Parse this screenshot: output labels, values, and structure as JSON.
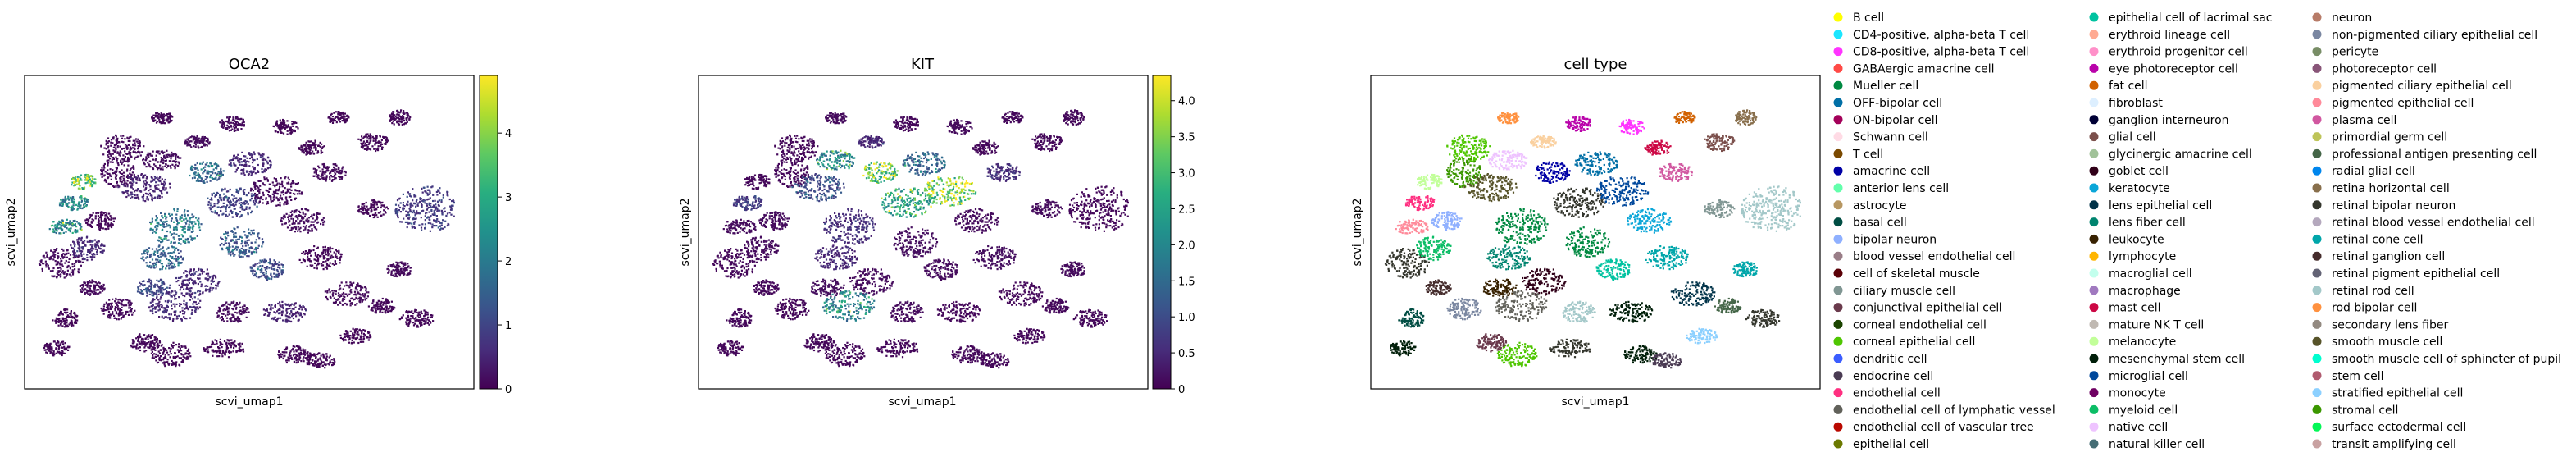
{
  "panels": [
    {
      "title": "OCA2",
      "xlabel": "scvi_umap1",
      "ylabel": "scvi_umap2",
      "colorbar": {
        "colormap": "viridis",
        "vmin": 0,
        "vmax": 4.9,
        "ticks": [
          "0",
          "1",
          "2",
          "3",
          "4"
        ],
        "tick_values": [
          0,
          1,
          2,
          3,
          4
        ]
      }
    },
    {
      "title": "KIT",
      "xlabel": "scvi_umap1",
      "ylabel": "scvi_umap2",
      "colorbar": {
        "colormap": "viridis",
        "vmin": 0,
        "vmax": 4.35,
        "ticks": [
          "0",
          "0.5",
          "1.0",
          "1.5",
          "2.0",
          "2.5",
          "3.0",
          "3.5",
          "4.0"
        ],
        "tick_values": [
          0,
          0.5,
          1,
          1.5,
          2,
          2.5,
          3,
          3.5,
          4
        ]
      }
    },
    {
      "title": "cell type",
      "xlabel": "scvi_umap1",
      "ylabel": "scvi_umap2"
    }
  ],
  "chart_data": {
    "type": "scatter",
    "embedding": "scvi_umap",
    "legend_placement": "right, outside, 3 columns",
    "categories": [
      {
        "name": "B cell",
        "color": "#ffff00"
      },
      {
        "name": "CD4-positive, alpha-beta T cell",
        "color": "#1ce6ff"
      },
      {
        "name": "CD8-positive, alpha-beta T cell",
        "color": "#ff34ff"
      },
      {
        "name": "GABAergic amacrine cell",
        "color": "#ff4a46"
      },
      {
        "name": "Mueller cell",
        "color": "#008941"
      },
      {
        "name": "OFF-bipolar cell",
        "color": "#006fa6"
      },
      {
        "name": "ON-bipolar cell",
        "color": "#a30059"
      },
      {
        "name": "Schwann cell",
        "color": "#ffdbe5"
      },
      {
        "name": "T cell",
        "color": "#7a4900"
      },
      {
        "name": "amacrine cell",
        "color": "#0000a6"
      },
      {
        "name": "anterior lens cell",
        "color": "#63ffac"
      },
      {
        "name": "astrocyte",
        "color": "#b79762"
      },
      {
        "name": "basal cell",
        "color": "#004d43"
      },
      {
        "name": "bipolar neuron",
        "color": "#8fb0ff"
      },
      {
        "name": "blood vessel endothelial cell",
        "color": "#997d87"
      },
      {
        "name": "cell of skeletal muscle",
        "color": "#5a0007"
      },
      {
        "name": "ciliary muscle cell",
        "color": "#809693"
      },
      {
        "name": "conjunctival epithelial cell",
        "color": "#6a3a4c"
      },
      {
        "name": "corneal endothelial cell",
        "color": "#1b4400"
      },
      {
        "name": "corneal epithelial cell",
        "color": "#4fc601"
      },
      {
        "name": "dendritic cell",
        "color": "#3b5dff"
      },
      {
        "name": "endocrine cell",
        "color": "#4a3b53"
      },
      {
        "name": "endothelial cell",
        "color": "#ff2f80"
      },
      {
        "name": "endothelial cell of lymphatic vessel",
        "color": "#61615a"
      },
      {
        "name": "endothelial cell of vascular tree",
        "color": "#ba0900"
      },
      {
        "name": "epithelial cell",
        "color": "#6b7900"
      },
      {
        "name": "epithelial cell of lacrimal sac",
        "color": "#00c2a0"
      },
      {
        "name": "erythroid lineage cell",
        "color": "#ffaa92"
      },
      {
        "name": "erythroid progenitor cell",
        "color": "#ff90c9"
      },
      {
        "name": "eye photoreceptor cell",
        "color": "#b903aa"
      },
      {
        "name": "fat cell",
        "color": "#d16100"
      },
      {
        "name": "fibroblast",
        "color": "#ddefff"
      },
      {
        "name": "ganglion interneuron",
        "color": "#000035"
      },
      {
        "name": "glial cell",
        "color": "#7b4f4b"
      },
      {
        "name": "glycinergic amacrine cell",
        "color": "#a1c299"
      },
      {
        "name": "goblet cell",
        "color": "#300018"
      },
      {
        "name": "keratocyte",
        "color": "#0aa6d8"
      },
      {
        "name": "lens epithelial cell",
        "color": "#013349"
      },
      {
        "name": "lens fiber cell",
        "color": "#00846f"
      },
      {
        "name": "leukocyte",
        "color": "#372101"
      },
      {
        "name": "lymphocyte",
        "color": "#ffb500"
      },
      {
        "name": "macroglial cell",
        "color": "#c2ffed"
      },
      {
        "name": "macrophage",
        "color": "#a079bf"
      },
      {
        "name": "mast cell",
        "color": "#cc0744"
      },
      {
        "name": "mature NK T cell",
        "color": "#c0b9b2"
      },
      {
        "name": "melanocyte",
        "color": "#c2ff99"
      },
      {
        "name": "mesenchymal stem cell",
        "color": "#001e09"
      },
      {
        "name": "microglial cell",
        "color": "#00489c"
      },
      {
        "name": "monocyte",
        "color": "#6f0062"
      },
      {
        "name": "myeloid cell",
        "color": "#0cbd66"
      },
      {
        "name": "native cell",
        "color": "#eec3ff"
      },
      {
        "name": "natural killer cell",
        "color": "#456d75"
      },
      {
        "name": "neuron",
        "color": "#b77b68"
      },
      {
        "name": "non-pigmented ciliary epithelial cell",
        "color": "#7a87a1"
      },
      {
        "name": "pericyte",
        "color": "#788d66"
      },
      {
        "name": "photoreceptor cell",
        "color": "#885578"
      },
      {
        "name": "pigmented ciliary epithelial cell",
        "color": "#fad09f"
      },
      {
        "name": "pigmented epithelial cell",
        "color": "#ff8a9a"
      },
      {
        "name": "plasma cell",
        "color": "#d157a0"
      },
      {
        "name": "primordial germ cell",
        "color": "#bec459"
      },
      {
        "name": "professional antigen presenting cell",
        "color": "#456648"
      },
      {
        "name": "radial glial cell",
        "color": "#0086ed"
      },
      {
        "name": "retina horizontal cell",
        "color": "#886f4c"
      },
      {
        "name": "retinal bipolar neuron",
        "color": "#34362d"
      },
      {
        "name": "retinal blood vessel endothelial cell",
        "color": "#b4a8bd"
      },
      {
        "name": "retinal cone cell",
        "color": "#00a6aa"
      },
      {
        "name": "retinal ganglion cell",
        "color": "#452c2c"
      },
      {
        "name": "retinal pigment epithelial cell",
        "color": "#636375"
      },
      {
        "name": "retinal rod cell",
        "color": "#a3c8c9"
      },
      {
        "name": "rod bipolar cell",
        "color": "#ff913f"
      },
      {
        "name": "secondary lens fiber",
        "color": "#938a81"
      },
      {
        "name": "smooth muscle cell",
        "color": "#575329"
      },
      {
        "name": "smooth muscle cell of sphincter of pupil",
        "color": "#00fecf"
      },
      {
        "name": "stem cell",
        "color": "#b05b6f"
      },
      {
        "name": "stratified epithelial cell",
        "color": "#8cd0ff"
      },
      {
        "name": "stromal cell",
        "color": "#3b9700"
      },
      {
        "name": "surface ectodermal cell",
        "color": "#04f757"
      },
      {
        "name": "transit amplifying cell",
        "color": "#c8a1a1"
      }
    ],
    "clusters": [
      {
        "x": 0.07,
        "y": 0.6,
        "rx": 0.05,
        "ry": 0.05,
        "cat": 63,
        "oca2": 0.4,
        "kit": 0.2
      },
      {
        "x": 0.13,
        "y": 0.55,
        "rx": 0.04,
        "ry": 0.04,
        "cat": 49,
        "oca2": 0.6,
        "kit": 0.3
      },
      {
        "x": 0.08,
        "y": 0.48,
        "rx": 0.04,
        "ry": 0.025,
        "cat": 57,
        "oca2": 2.6,
        "kit": 0.3
      },
      {
        "x": 0.1,
        "y": 0.4,
        "rx": 0.035,
        "ry": 0.025,
        "cat": 22,
        "oca2": 2.4,
        "kit": 0.8
      },
      {
        "x": 0.16,
        "y": 0.46,
        "rx": 0.035,
        "ry": 0.03,
        "cat": 13,
        "oca2": 0.2,
        "kit": 0.3
      },
      {
        "x": 0.12,
        "y": 0.33,
        "rx": 0.03,
        "ry": 0.025,
        "cat": 45,
        "oca2": 4.3,
        "kit": 0.2
      },
      {
        "x": 0.2,
        "y": 0.3,
        "rx": 0.04,
        "ry": 0.05,
        "cat": 75,
        "oca2": 0.3,
        "kit": 0.2
      },
      {
        "x": 0.21,
        "y": 0.22,
        "rx": 0.05,
        "ry": 0.045,
        "cat": 19,
        "oca2": 0.3,
        "kit": 0.2
      },
      {
        "x": 0.26,
        "y": 0.35,
        "rx": 0.06,
        "ry": 0.045,
        "cat": 71,
        "oca2": 0.5,
        "kit": 1.1
      },
      {
        "x": 0.3,
        "y": 0.26,
        "rx": 0.045,
        "ry": 0.035,
        "cat": 50,
        "oca2": 0.4,
        "kit": 2.3
      },
      {
        "x": 0.33,
        "y": 0.48,
        "rx": 0.06,
        "ry": 0.06,
        "cat": 4,
        "oca2": 2.1,
        "kit": 0.6
      },
      {
        "x": 0.3,
        "y": 0.58,
        "rx": 0.05,
        "ry": 0.04,
        "cat": 38,
        "oca2": 1.7,
        "kit": 0.5
      },
      {
        "x": 0.28,
        "y": 0.68,
        "rx": 0.04,
        "ry": 0.03,
        "cat": 39,
        "oca2": 1.2,
        "kit": 0.4
      },
      {
        "x": 0.38,
        "y": 0.66,
        "rx": 0.05,
        "ry": 0.045,
        "cat": 35,
        "oca2": 0.6,
        "kit": 0.3
      },
      {
        "x": 0.2,
        "y": 0.75,
        "rx": 0.04,
        "ry": 0.035,
        "cat": 53,
        "oca2": 0.3,
        "kit": 0.2
      },
      {
        "x": 0.4,
        "y": 0.3,
        "rx": 0.04,
        "ry": 0.035,
        "cat": 9,
        "oca2": 1.8,
        "kit": 3.6
      },
      {
        "x": 0.46,
        "y": 0.4,
        "rx": 0.06,
        "ry": 0.05,
        "cat": 63,
        "oca2": 1.0,
        "kit": 2.8
      },
      {
        "x": 0.5,
        "y": 0.27,
        "rx": 0.05,
        "ry": 0.04,
        "cat": 5,
        "oca2": 0.6,
        "kit": 1.6
      },
      {
        "x": 0.56,
        "y": 0.36,
        "rx": 0.06,
        "ry": 0.05,
        "cat": 47,
        "oca2": 0.3,
        "kit": 4.0
      },
      {
        "x": 0.48,
        "y": 0.53,
        "rx": 0.05,
        "ry": 0.05,
        "cat": 4,
        "oca2": 1.5,
        "kit": 0.4
      },
      {
        "x": 0.54,
        "y": 0.62,
        "rx": 0.04,
        "ry": 0.035,
        "cat": 26,
        "oca2": 1.2,
        "kit": 0.3
      },
      {
        "x": 0.62,
        "y": 0.46,
        "rx": 0.05,
        "ry": 0.04,
        "cat": 36,
        "oca2": 0.4,
        "kit": 0.3
      },
      {
        "x": 0.68,
        "y": 0.3,
        "rx": 0.04,
        "ry": 0.03,
        "cat": 58,
        "oca2": 0.3,
        "kit": 0.6
      },
      {
        "x": 0.66,
        "y": 0.58,
        "rx": 0.05,
        "ry": 0.04,
        "cat": 65,
        "oca2": 0.2,
        "kit": 0.4
      },
      {
        "x": 0.58,
        "y": 0.76,
        "rx": 0.05,
        "ry": 0.035,
        "cat": 46,
        "oca2": 0.5,
        "kit": 0.2
      },
      {
        "x": 0.72,
        "y": 0.7,
        "rx": 0.05,
        "ry": 0.04,
        "cat": 37,
        "oca2": 0.3,
        "kit": 0.2
      },
      {
        "x": 0.78,
        "y": 0.42,
        "rx": 0.035,
        "ry": 0.03,
        "cat": 16,
        "oca2": 0.2,
        "kit": 0.3
      },
      {
        "x": 0.78,
        "y": 0.2,
        "rx": 0.035,
        "ry": 0.03,
        "cat": 33,
        "oca2": 0.2,
        "kit": 0.2
      },
      {
        "x": 0.9,
        "y": 0.42,
        "rx": 0.07,
        "ry": 0.08,
        "cat": 68,
        "oca2": 0.9,
        "kit": 0.2
      },
      {
        "x": 0.84,
        "y": 0.62,
        "rx": 0.03,
        "ry": 0.025,
        "cat": 65,
        "oca2": 0.3,
        "kit": 0.3
      },
      {
        "x": 0.88,
        "y": 0.78,
        "rx": 0.04,
        "ry": 0.03,
        "cat": 63,
        "oca2": 0.2,
        "kit": 0.2
      },
      {
        "x": 0.44,
        "y": 0.88,
        "rx": 0.05,
        "ry": 0.03,
        "cat": 63,
        "oca2": 0.2,
        "kit": 0.2
      },
      {
        "x": 0.46,
        "y": 0.76,
        "rx": 0.04,
        "ry": 0.035,
        "cat": 68,
        "oca2": 0.3,
        "kit": 0.3
      },
      {
        "x": 0.32,
        "y": 0.9,
        "rx": 0.045,
        "ry": 0.04,
        "cat": 19,
        "oca2": 0.2,
        "kit": 0.2
      },
      {
        "x": 0.26,
        "y": 0.86,
        "rx": 0.035,
        "ry": 0.03,
        "cat": 17,
        "oca2": 0.2,
        "kit": 0.2
      },
      {
        "x": 0.33,
        "y": 0.74,
        "rx": 0.06,
        "ry": 0.05,
        "cat": 23,
        "oca2": 0.6,
        "kit": 2.2
      },
      {
        "x": 0.6,
        "y": 0.9,
        "rx": 0.04,
        "ry": 0.03,
        "cat": 46,
        "oca2": 0.2,
        "kit": 0.2
      },
      {
        "x": 0.08,
        "y": 0.78,
        "rx": 0.03,
        "ry": 0.03,
        "cat": 12,
        "oca2": 0.2,
        "kit": 0.2
      },
      {
        "x": 0.06,
        "y": 0.88,
        "rx": 0.03,
        "ry": 0.025,
        "cat": 46,
        "oca2": 0.2,
        "kit": 0.2
      },
      {
        "x": 0.3,
        "y": 0.12,
        "rx": 0.025,
        "ry": 0.02,
        "cat": 69,
        "oca2": 0.2,
        "kit": 0.3
      },
      {
        "x": 0.46,
        "y": 0.14,
        "rx": 0.03,
        "ry": 0.025,
        "cat": 29,
        "oca2": 0.3,
        "kit": 0.2
      },
      {
        "x": 0.58,
        "y": 0.15,
        "rx": 0.03,
        "ry": 0.025,
        "cat": 2,
        "oca2": 0.2,
        "kit": 0.3
      },
      {
        "x": 0.64,
        "y": 0.22,
        "rx": 0.03,
        "ry": 0.025,
        "cat": 43,
        "oca2": 0.2,
        "kit": 0.2
      },
      {
        "x": 0.7,
        "y": 0.12,
        "rx": 0.025,
        "ry": 0.02,
        "cat": 30,
        "oca2": 0.2,
        "kit": 0.2
      },
      {
        "x": 0.84,
        "y": 0.12,
        "rx": 0.025,
        "ry": 0.025,
        "cat": 62,
        "oca2": 0.2,
        "kit": 0.2
      },
      {
        "x": 0.38,
        "y": 0.2,
        "rx": 0.03,
        "ry": 0.02,
        "cat": 56,
        "oca2": 0.4,
        "kit": 0.5
      },
      {
        "x": 0.14,
        "y": 0.68,
        "rx": 0.03,
        "ry": 0.025,
        "cat": 66,
        "oca2": 0.3,
        "kit": 0.2
      },
      {
        "x": 0.74,
        "y": 0.84,
        "rx": 0.035,
        "ry": 0.025,
        "cat": 74,
        "oca2": 0.2,
        "kit": 0.2
      },
      {
        "x": 0.8,
        "y": 0.74,
        "rx": 0.03,
        "ry": 0.025,
        "cat": 60,
        "oca2": 0.2,
        "kit": 0.2
      },
      {
        "x": 0.66,
        "y": 0.92,
        "rx": 0.035,
        "ry": 0.025,
        "cat": 21,
        "oca2": 0.2,
        "kit": 0.2
      }
    ]
  }
}
